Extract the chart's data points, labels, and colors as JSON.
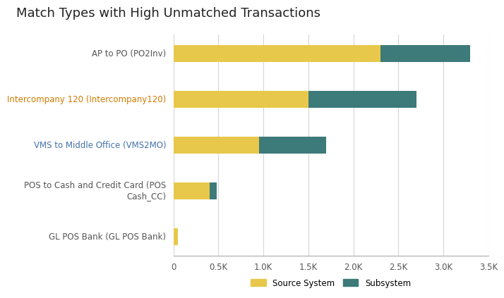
{
  "title": "Match Types with High Unmatched Transactions",
  "categories": [
    "GL POS Bank (GL POS Bank)",
    "POS to Cash and Credit Card (POS\nCash_CC)",
    "VMS to Middle Office (VMS2MO)",
    "Intercompany 120 (Intercompany120)",
    "AP to PO (PO2Inv)"
  ],
  "source_system": [
    50,
    400,
    950,
    1500,
    2300
  ],
  "subsystem": [
    0,
    80,
    750,
    1200,
    1000
  ],
  "label_colors": [
    "#555555",
    "#555555",
    "#4472a8",
    "#d47a00",
    "#555555"
  ],
  "color_source": "#E8C84A",
  "color_subsystem": "#3D7A7A",
  "xlim": [
    0,
    3500
  ],
  "xtick_values": [
    0,
    500,
    1000,
    1500,
    2000,
    2500,
    3000,
    3500
  ],
  "xtick_labels": [
    "0",
    "0.5K",
    "1.0K",
    "1.5K",
    "2.0K",
    "2.5K",
    "3.0K",
    "3.5K"
  ],
  "legend_labels": [
    "Source System",
    "Subsystem"
  ],
  "background_color": "#ffffff",
  "bar_height": 0.38,
  "title_fontsize": 13,
  "tick_fontsize": 8.5,
  "label_fontsize": 8.5
}
